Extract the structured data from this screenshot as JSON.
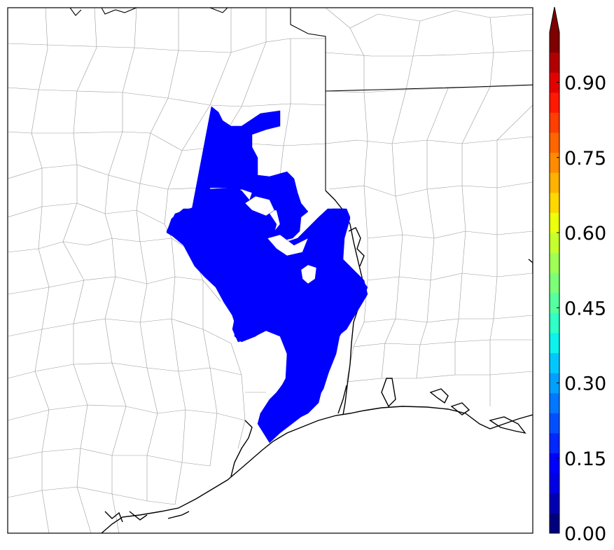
{
  "colorbar": {
    "tick_labels": [
      "0.00",
      "0.15",
      "0.30",
      "0.45",
      "0.60",
      "0.75",
      "0.90"
    ],
    "tick_values": [
      0.0,
      0.15,
      0.3,
      0.45,
      0.6,
      0.75,
      0.9
    ],
    "range": [
      0.0,
      1.0
    ],
    "extend": "max",
    "colormap": "jet",
    "band_colors": [
      "#00007f",
      "#0000b2",
      "#0000e5",
      "#0000ff",
      "#0028ff",
      "#0050ff",
      "#0078ff",
      "#00a0ff",
      "#00c8ff",
      "#0cf2ec",
      "#30ffc6",
      "#56ffa0",
      "#7dff7a",
      "#a0ff56",
      "#c6ff30",
      "#ecff0c",
      "#ffd800",
      "#ffb200",
      "#ff8c00",
      "#ff6600",
      "#ff3f00",
      "#ff1900",
      "#e50000",
      "#b20000",
      "#7f0000"
    ],
    "over_color": "#7f0000"
  },
  "map": {
    "shaded_region_color": "#0000ff",
    "shaded_region_value_range": [
      0.1,
      0.15
    ]
  }
}
